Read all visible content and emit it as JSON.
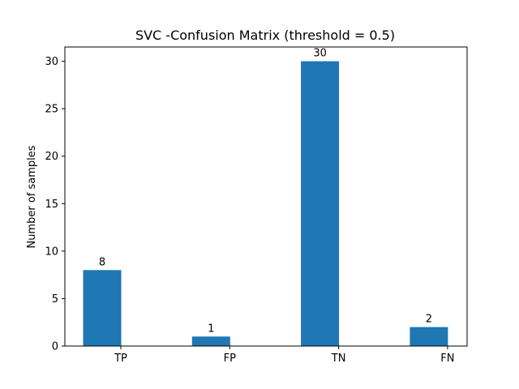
{
  "chart_data": {
    "type": "bar",
    "title": "SVC -Confusion Matrix (threshold = 0.5)",
    "xlabel": "",
    "ylabel": "Number of samples",
    "categories": [
      "TP",
      "FP",
      "TN",
      "FN"
    ],
    "values": [
      8,
      1,
      30,
      2
    ],
    "data_labels": [
      "8",
      "1",
      "30",
      "2"
    ],
    "ylim": [
      0,
      31.5
    ],
    "yticks": [
      0,
      5,
      10,
      15,
      20,
      25,
      30
    ],
    "grid": false,
    "legend": "none",
    "bar_color": "#1f77b4"
  }
}
